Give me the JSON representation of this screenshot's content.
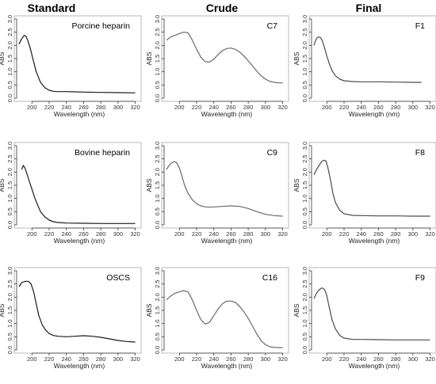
{
  "columns": [
    "Standard",
    "Crude",
    "Final"
  ],
  "colors": {
    "standard": "#1a1a1a",
    "crude": "#6a6a6a",
    "final": "#4a4a4a"
  },
  "chart_data": [
    {
      "type": "line",
      "label": "Porcine heparin",
      "col": 0,
      "row": 0,
      "xlabel": "Wavelength (nm)",
      "ylabel": "ABS",
      "xlim": [
        185,
        325
      ],
      "ylim": [
        0,
        3.0
      ],
      "xticks": [
        200,
        220,
        240,
        260,
        280,
        300,
        320
      ],
      "yticks": [
        0,
        0.5,
        1.0,
        1.5,
        2.0,
        2.5,
        3.0
      ],
      "x": [
        185,
        188,
        191,
        193,
        195,
        198,
        201,
        205,
        210,
        215,
        220,
        225,
        230,
        240,
        250,
        260,
        280,
        300,
        320
      ],
      "y": [
        2.05,
        2.25,
        2.38,
        2.35,
        2.2,
        1.9,
        1.5,
        1.0,
        0.6,
        0.4,
        0.3,
        0.26,
        0.25,
        0.25,
        0.24,
        0.23,
        0.22,
        0.21,
        0.2
      ]
    },
    {
      "type": "line",
      "label": "C7",
      "col": 1,
      "row": 0,
      "xlabel": "Wavelength (nm)",
      "ylabel": "ABS",
      "xlim": [
        185,
        325
      ],
      "ylim": [
        0,
        3.0
      ],
      "xticks": [
        200,
        220,
        240,
        260,
        280,
        300,
        320
      ],
      "yticks": [
        0,
        0.5,
        1.0,
        1.5,
        2.0,
        2.5,
        3.0
      ],
      "x": [
        185,
        190,
        195,
        200,
        205,
        210,
        215,
        220,
        225,
        230,
        235,
        240,
        245,
        250,
        255,
        260,
        265,
        270,
        275,
        280,
        285,
        290,
        295,
        300,
        305,
        310,
        315,
        320
      ],
      "y": [
        2.2,
        2.32,
        2.38,
        2.45,
        2.5,
        2.48,
        2.2,
        1.85,
        1.55,
        1.38,
        1.37,
        1.48,
        1.65,
        1.8,
        1.88,
        1.9,
        1.85,
        1.75,
        1.6,
        1.42,
        1.22,
        1.02,
        0.85,
        0.72,
        0.64,
        0.6,
        0.58,
        0.58
      ]
    },
    {
      "type": "line",
      "label": "F1",
      "col": 2,
      "row": 0,
      "xlabel": "Wavelength (nm)",
      "ylabel": "ABS",
      "xlim": [
        185,
        325
      ],
      "ylim": [
        0,
        3.0
      ],
      "xticks": [
        200,
        220,
        240,
        260,
        280,
        300,
        320
      ],
      "yticks": [
        0,
        0.5,
        1.0,
        1.5,
        2.0,
        2.5,
        3.0
      ],
      "x": [
        185,
        187,
        189,
        191,
        193,
        195,
        197,
        200,
        203,
        206,
        210,
        215,
        220,
        230,
        240,
        260,
        280,
        300,
        310
      ],
      "y": [
        2.0,
        2.2,
        2.3,
        2.32,
        2.28,
        2.15,
        1.95,
        1.6,
        1.3,
        1.05,
        0.85,
        0.72,
        0.66,
        0.63,
        0.62,
        0.62,
        0.61,
        0.6,
        0.6
      ]
    },
    {
      "type": "line",
      "label": "Bovine heparin",
      "col": 0,
      "row": 1,
      "xlabel": "Wavelength (nm)",
      "ylabel": "ABS",
      "xlim": [
        185,
        325
      ],
      "ylim": [
        0,
        3.0
      ],
      "xticks": [
        200,
        220,
        240,
        260,
        280,
        300,
        320
      ],
      "yticks": [
        0,
        0.5,
        1.0,
        1.5,
        2.0,
        2.5,
        3.0
      ],
      "x": [
        188,
        190,
        192,
        194,
        197,
        200,
        203,
        206,
        210,
        215,
        220,
        225,
        230,
        240,
        260,
        280,
        300,
        320
      ],
      "y": [
        2.1,
        2.25,
        2.15,
        1.95,
        1.65,
        1.35,
        1.05,
        0.8,
        0.5,
        0.3,
        0.18,
        0.12,
        0.09,
        0.07,
        0.06,
        0.05,
        0.05,
        0.05
      ]
    },
    {
      "type": "line",
      "label": "C9",
      "col": 1,
      "row": 1,
      "xlabel": "Wavelength (nm)",
      "ylabel": "ABS",
      "xlim": [
        185,
        325
      ],
      "ylim": [
        0,
        3.0
      ],
      "xticks": [
        200,
        220,
        240,
        260,
        280,
        300,
        320
      ],
      "yticks": [
        0,
        0.5,
        1.0,
        1.5,
        2.0,
        2.5,
        3.0
      ],
      "x": [
        185,
        188,
        191,
        194,
        197,
        200,
        203,
        206,
        210,
        215,
        220,
        225,
        230,
        235,
        240,
        250,
        260,
        270,
        280,
        290,
        300,
        310,
        320
      ],
      "y": [
        2.1,
        2.25,
        2.35,
        2.4,
        2.35,
        2.15,
        1.85,
        1.5,
        1.2,
        0.95,
        0.8,
        0.72,
        0.68,
        0.67,
        0.68,
        0.7,
        0.72,
        0.7,
        0.62,
        0.5,
        0.4,
        0.35,
        0.33
      ]
    },
    {
      "type": "line",
      "label": "F8",
      "col": 2,
      "row": 1,
      "xlabel": "Wavelength (nm)",
      "ylabel": "ABS",
      "xlim": [
        185,
        325
      ],
      "ylim": [
        0,
        3.0
      ],
      "xticks": [
        200,
        220,
        240,
        260,
        280,
        300,
        320
      ],
      "yticks": [
        0,
        0.5,
        1.0,
        1.5,
        2.0,
        2.5,
        3.0
      ],
      "x": [
        185,
        188,
        191,
        194,
        197,
        199,
        201,
        204,
        207,
        210,
        215,
        220,
        230,
        240,
        260,
        280,
        300,
        320
      ],
      "y": [
        1.9,
        2.1,
        2.25,
        2.4,
        2.45,
        2.42,
        2.2,
        1.75,
        1.2,
        0.85,
        0.55,
        0.42,
        0.36,
        0.35,
        0.34,
        0.34,
        0.33,
        0.33
      ]
    },
    {
      "type": "line",
      "label": "OSCS",
      "col": 0,
      "row": 2,
      "xlabel": "Wavelength (nm)",
      "ylabel": "ABS",
      "xlim": [
        185,
        325
      ],
      "ylim": [
        0,
        3.0
      ],
      "xticks": [
        200,
        220,
        240,
        260,
        280,
        300,
        320
      ],
      "yticks": [
        0,
        0.5,
        1.0,
        1.5,
        2.0,
        2.5,
        3.0
      ],
      "x": [
        185,
        188,
        192,
        196,
        199,
        202,
        205,
        208,
        212,
        216,
        220,
        225,
        230,
        240,
        250,
        260,
        270,
        280,
        290,
        300,
        310,
        320
      ],
      "y": [
        2.4,
        2.55,
        2.6,
        2.6,
        2.5,
        2.2,
        1.75,
        1.3,
        0.95,
        0.75,
        0.62,
        0.55,
        0.52,
        0.5,
        0.52,
        0.54,
        0.52,
        0.48,
        0.42,
        0.36,
        0.32,
        0.3
      ]
    },
    {
      "type": "line",
      "label": "C16",
      "col": 1,
      "row": 2,
      "xlabel": "Wavelength (nm)",
      "ylabel": "ABS",
      "xlim": [
        185,
        325
      ],
      "ylim": [
        0,
        3.0
      ],
      "xticks": [
        200,
        220,
        240,
        260,
        280,
        300,
        320
      ],
      "yticks": [
        0,
        0.5,
        1.0,
        1.5,
        2.0,
        2.5,
        3.0
      ],
      "x": [
        185,
        190,
        195,
        200,
        205,
        210,
        215,
        220,
        225,
        230,
        235,
        240,
        245,
        250,
        255,
        260,
        265,
        270,
        275,
        280,
        285,
        290,
        295,
        300,
        305,
        310,
        315,
        320
      ],
      "y": [
        1.9,
        2.05,
        2.15,
        2.2,
        2.25,
        2.2,
        1.9,
        1.5,
        1.15,
        0.98,
        1.05,
        1.3,
        1.55,
        1.75,
        1.85,
        1.85,
        1.8,
        1.65,
        1.45,
        1.2,
        0.9,
        0.6,
        0.35,
        0.2,
        0.12,
        0.1,
        0.09,
        0.09
      ]
    },
    {
      "type": "line",
      "label": "F9",
      "col": 2,
      "row": 2,
      "xlabel": "Wavelength (nm)",
      "ylabel": "ABS",
      "xlim": [
        185,
        325
      ],
      "ylim": [
        0,
        3.0
      ],
      "xticks": [
        200,
        220,
        240,
        260,
        280,
        300,
        320
      ],
      "yticks": [
        0,
        0.5,
        1.0,
        1.5,
        2.0,
        2.5,
        3.0
      ],
      "x": [
        185,
        188,
        191,
        194,
        196,
        198,
        200,
        203,
        206,
        210,
        215,
        220,
        230,
        240,
        260,
        280,
        300,
        320
      ],
      "y": [
        1.95,
        2.15,
        2.28,
        2.35,
        2.33,
        2.25,
        2.05,
        1.6,
        1.15,
        0.8,
        0.55,
        0.45,
        0.4,
        0.4,
        0.39,
        0.38,
        0.38,
        0.38
      ]
    }
  ]
}
